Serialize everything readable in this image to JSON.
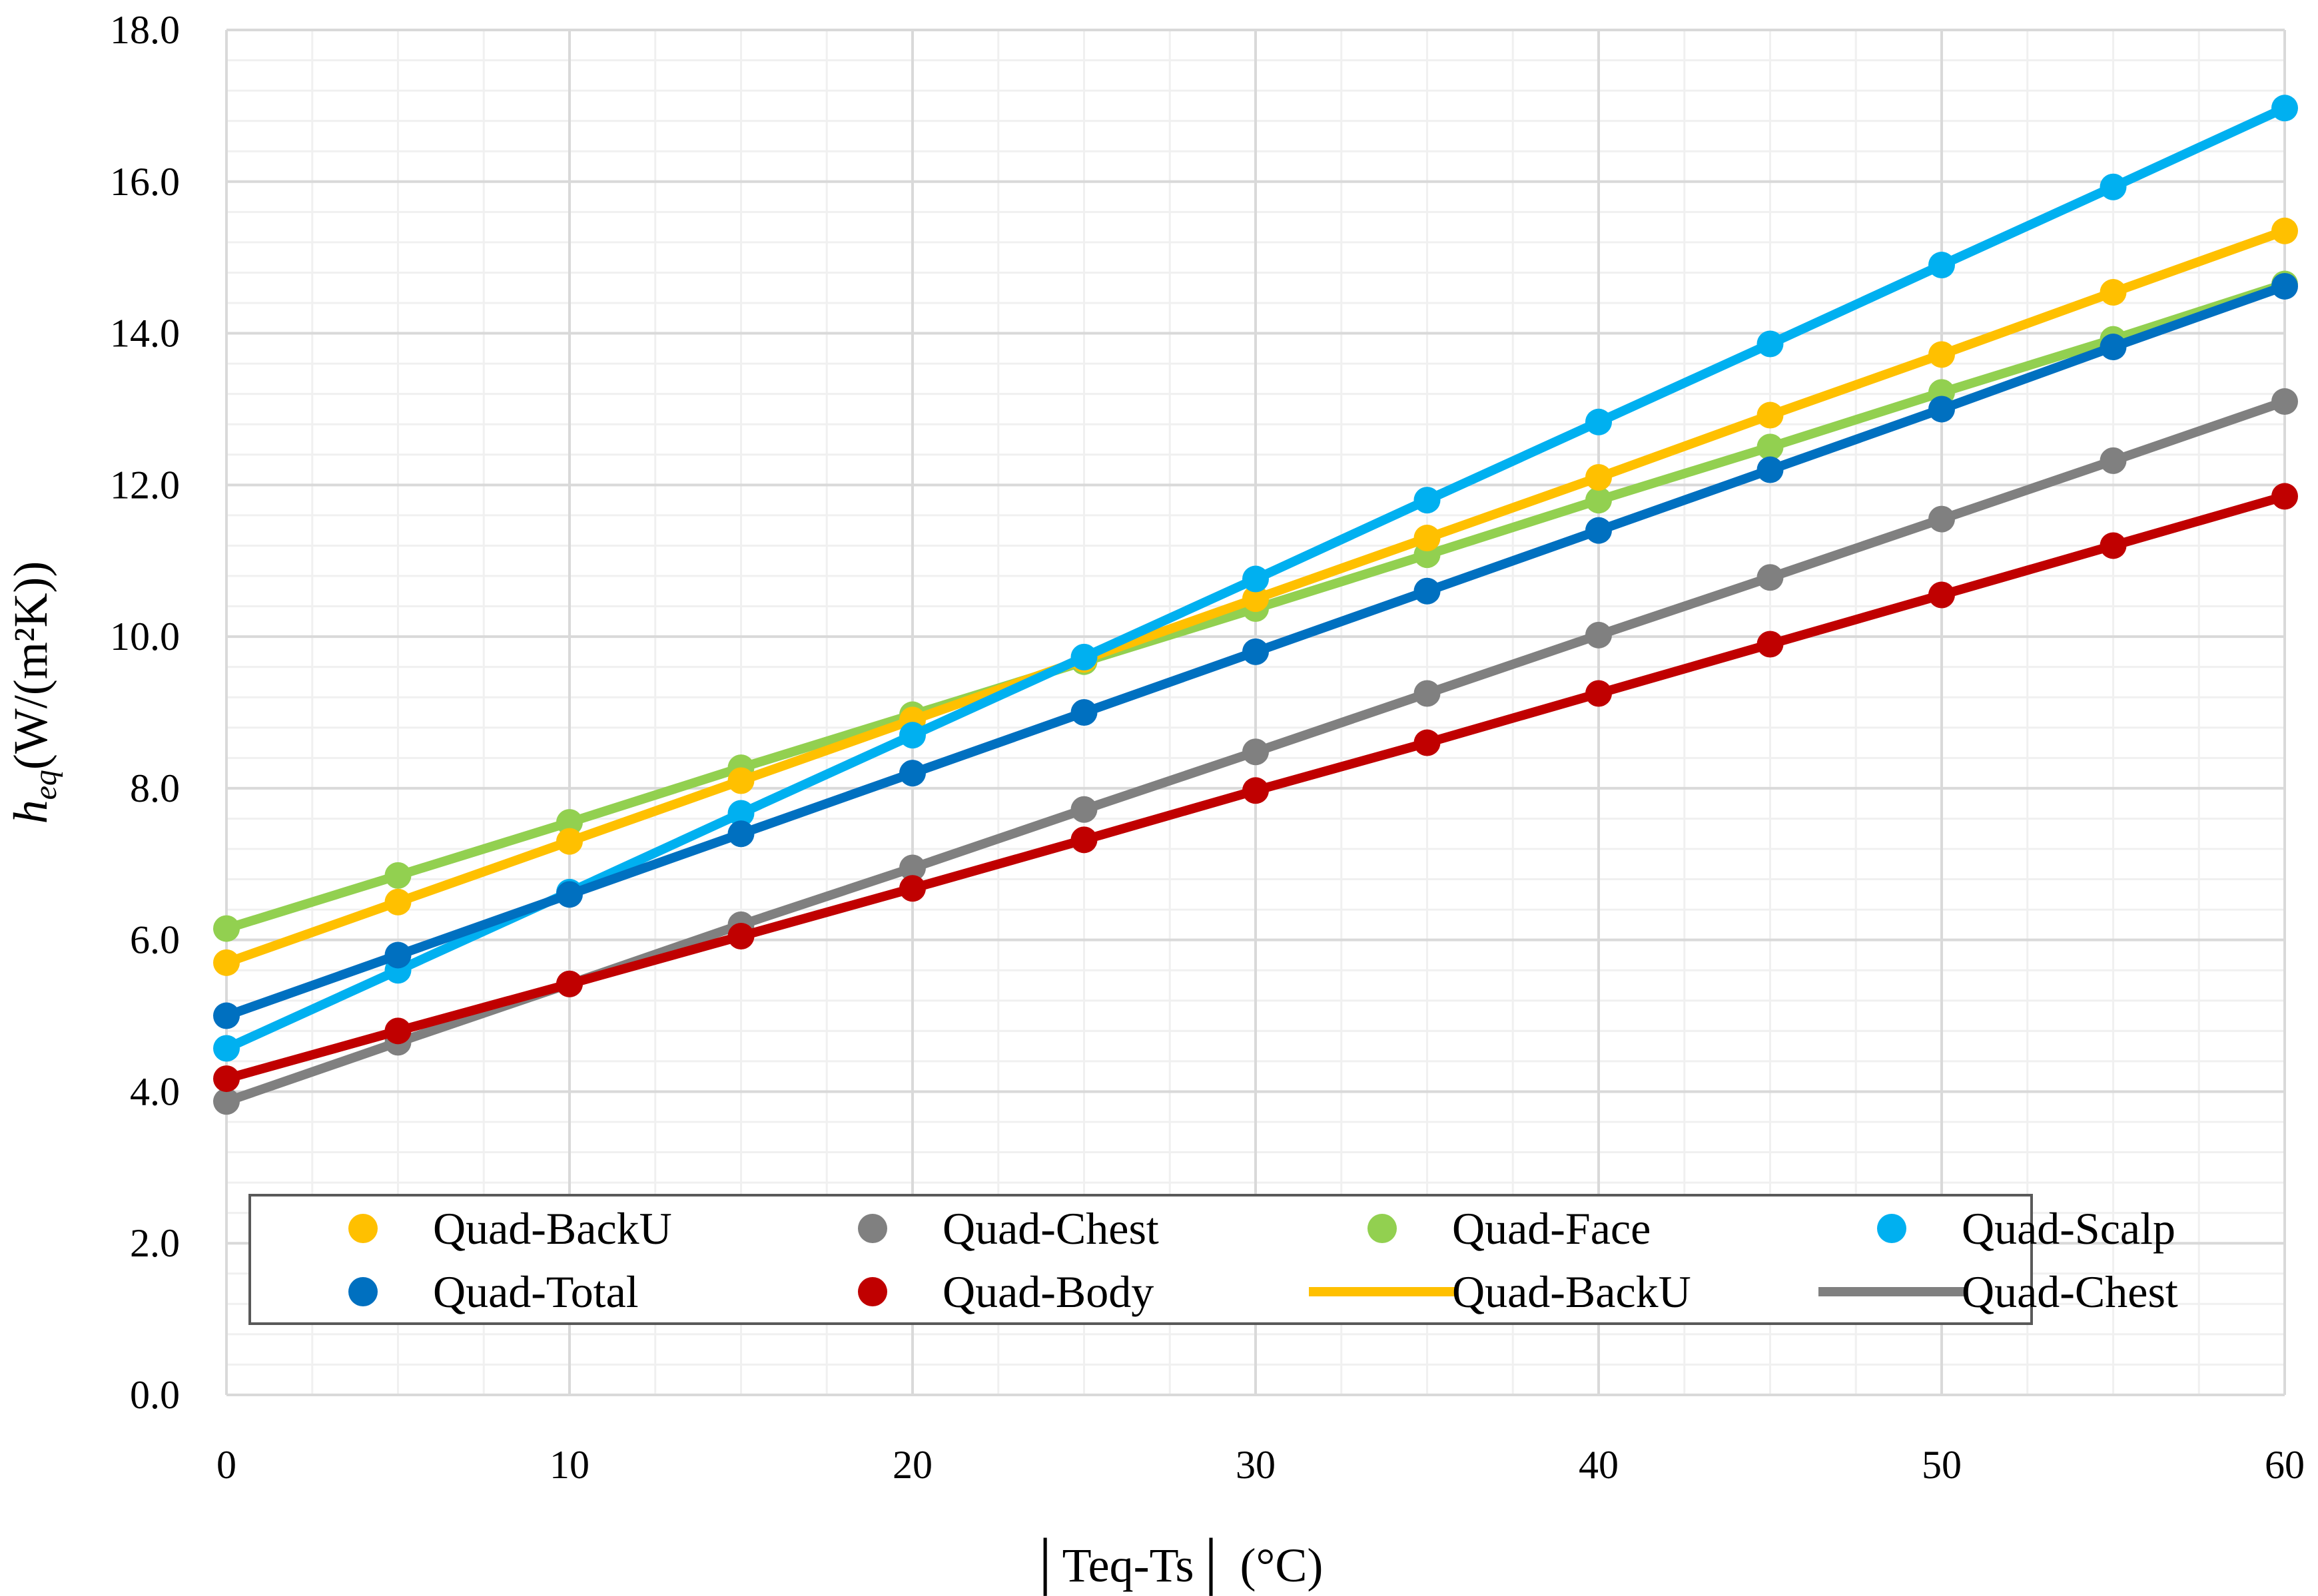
{
  "chart_data": {
    "type": "line",
    "title": "",
    "xlabel": "│Teq-Ts│ (°C)",
    "ylabel": {
      "main": "h",
      "sub": "eq",
      "rest": "(W/(m²K))"
    },
    "xlim": [
      0,
      60
    ],
    "ylim": [
      0,
      18
    ],
    "x_ticks": [
      "0",
      "10",
      "20",
      "30",
      "40",
      "50",
      "60"
    ],
    "y_ticks": [
      "0.0",
      "2.0",
      "4.0",
      "6.0",
      "8.0",
      "10.0",
      "12.0",
      "14.0",
      "16.0",
      "18.0"
    ],
    "grid": true,
    "x": [
      0,
      5,
      10,
      15,
      20,
      25,
      30,
      35,
      40,
      45,
      50,
      55,
      60
    ],
    "series": [
      {
        "name": "Quad-Face",
        "color": "#92D050",
        "values": [
          6.15,
          6.85,
          7.55,
          8.27,
          8.97,
          9.67,
          10.37,
          11.08,
          11.8,
          12.5,
          13.22,
          13.92,
          14.65
        ]
      },
      {
        "name": "Quad-BackU",
        "color": "#FFC000",
        "values": [
          5.7,
          6.5,
          7.3,
          8.1,
          8.9,
          9.7,
          10.5,
          11.3,
          12.1,
          12.92,
          13.72,
          14.54,
          15.35
        ]
      },
      {
        "name": "Quad-Scalp",
        "color": "#00B0F0",
        "values": [
          4.57,
          5.6,
          6.63,
          7.67,
          8.7,
          9.73,
          10.76,
          11.8,
          12.83,
          13.86,
          14.9,
          15.93,
          16.97
        ]
      },
      {
        "name": "Quad-Total",
        "color": "#0070C0",
        "values": [
          5.0,
          5.8,
          6.6,
          7.4,
          8.2,
          9.0,
          9.8,
          10.6,
          11.4,
          12.2,
          13.0,
          13.82,
          14.62
        ]
      },
      {
        "name": "Quad-Chest",
        "color": "#808080",
        "values": [
          3.87,
          4.65,
          5.42,
          6.2,
          6.95,
          7.72,
          8.48,
          9.25,
          10.02,
          10.78,
          11.55,
          12.32,
          13.1
        ]
      },
      {
        "name": "Quad-Body",
        "color": "#C00000",
        "values": [
          4.17,
          4.8,
          5.42,
          6.05,
          6.68,
          7.32,
          7.97,
          8.6,
          9.25,
          9.9,
          10.55,
          11.2,
          11.85
        ]
      }
    ],
    "legend_position": "bottom",
    "legend": [
      {
        "label": "Quad-BackU",
        "color": "#FFC000",
        "marker": "dot"
      },
      {
        "label": "Quad-Chest",
        "color": "#808080",
        "marker": "dot"
      },
      {
        "label": "Quad-Face",
        "color": "#92D050",
        "marker": "dot"
      },
      {
        "label": "Quad-Scalp",
        "color": "#00B0F0",
        "marker": "dot"
      },
      {
        "label": "Quad-Total",
        "color": "#0070C0",
        "marker": "dot"
      },
      {
        "label": "Quad-Body",
        "color": "#C00000",
        "marker": "dot"
      },
      {
        "label": "Quad-BackU",
        "color": "#FFC000",
        "marker": "line"
      },
      {
        "label": "Quad-Chest",
        "color": "#808080",
        "marker": "line"
      }
    ]
  }
}
